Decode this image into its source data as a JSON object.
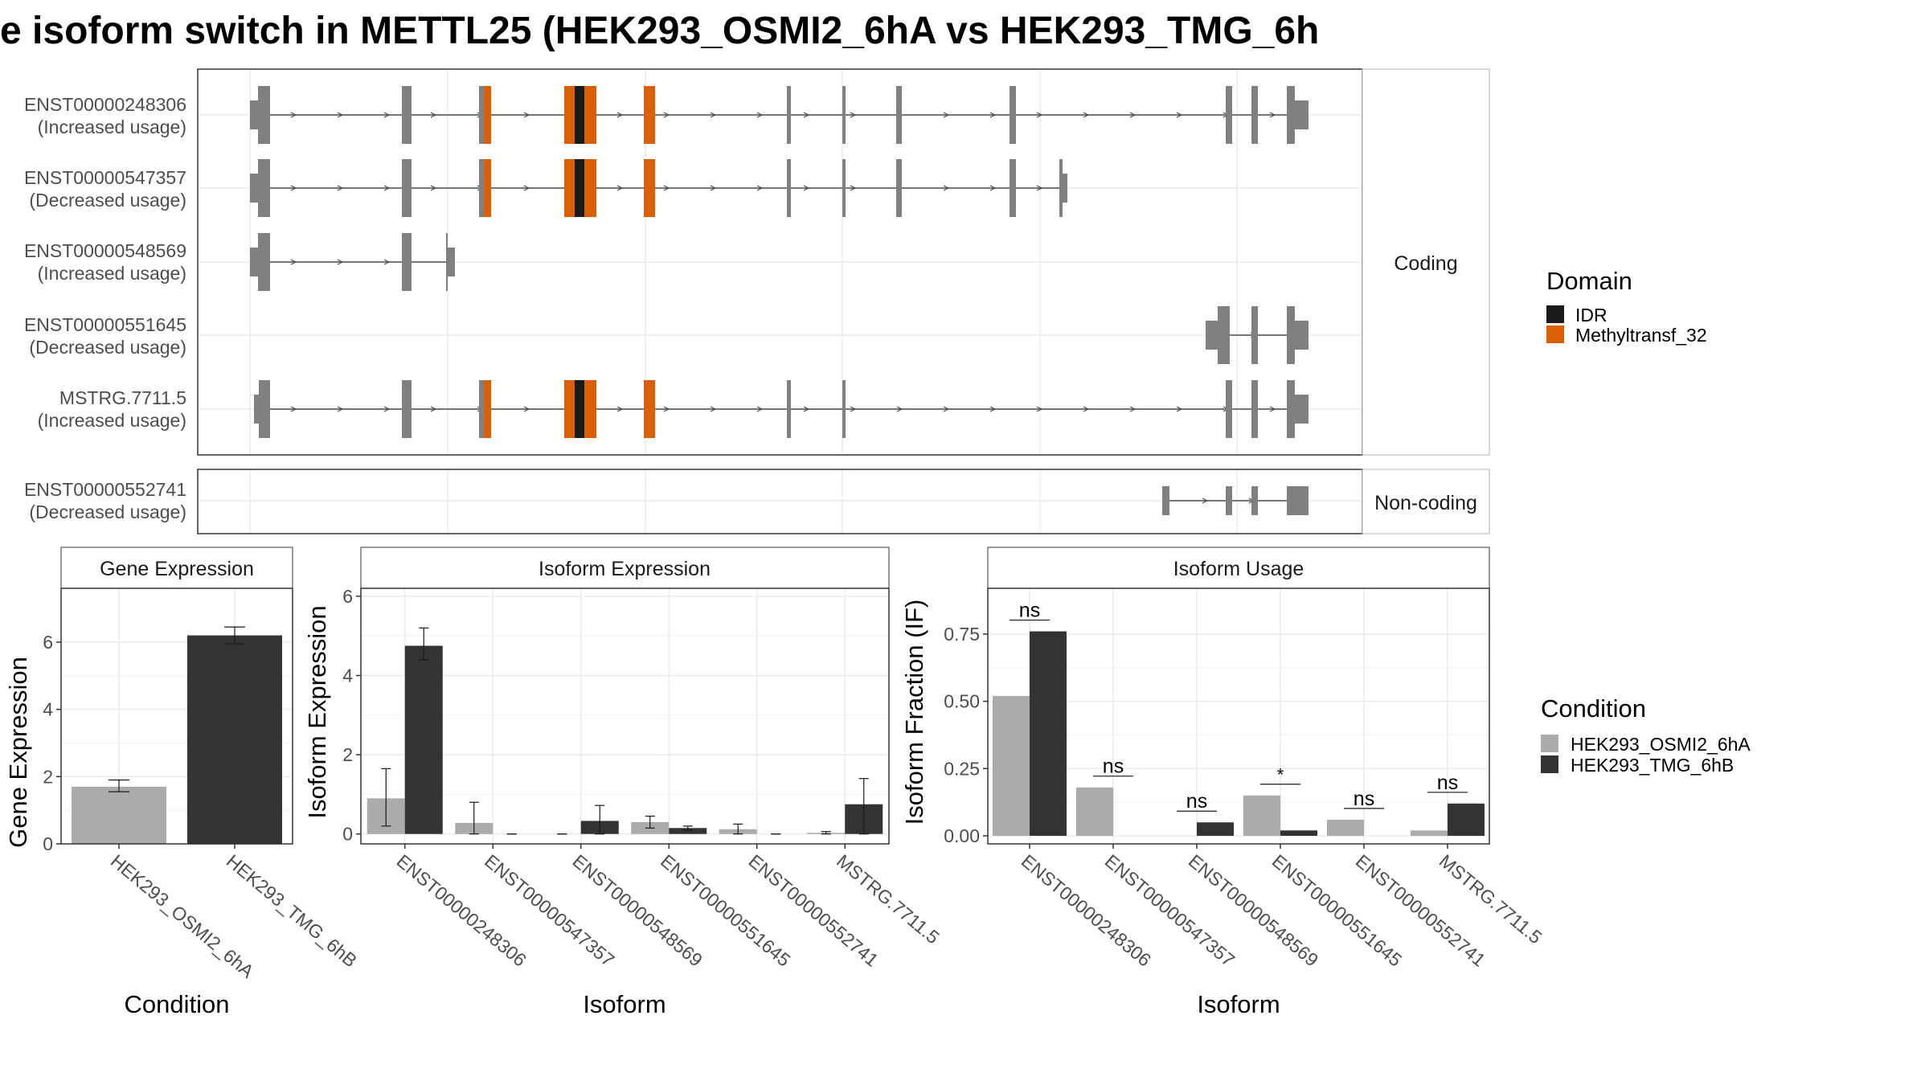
{
  "title": "e isoform switch in METTL25 (HEK293_OSMI2_6hA vs HEK293_TMG_6h",
  "structure_panel": {
    "strips": [
      "Coding",
      "Non-coding"
    ],
    "coding_transcripts": [
      {
        "id": "ENST00000248306",
        "usage": "(Increased usage)"
      },
      {
        "id": "ENST00000547357",
        "usage": "(Decreased usage)"
      },
      {
        "id": "ENST00000548569",
        "usage": "(Increased usage)"
      },
      {
        "id": "ENST00000551645",
        "usage": "(Decreased usage)"
      },
      {
        "id": "MSTRG.7711.5",
        "usage": "(Increased usage)"
      }
    ],
    "noncoding_transcripts": [
      {
        "id": "ENST00000552741",
        "usage": "(Decreased usage)"
      }
    ]
  },
  "legend_domain": {
    "title": "Domain",
    "items": [
      {
        "label": "IDR",
        "color": "#1a1a1a"
      },
      {
        "label": "Methyltransf_32",
        "color": "#d95f02"
      }
    ]
  },
  "legend_condition": {
    "title": "Condition",
    "items": [
      {
        "label": "HEK293_OSMI2_6hA",
        "color": "#ababab"
      },
      {
        "label": "HEK293_TMG_6hB",
        "color": "#333333"
      }
    ]
  },
  "chart_data": [
    {
      "type": "bar",
      "title": "Gene Expression",
      "xlabel": "Condition",
      "ylabel": "Gene Expression",
      "ylim": [
        0,
        7.6
      ],
      "yticks": [
        0,
        2,
        4,
        6
      ],
      "categories": [
        "HEK293_OSMI2_6hA",
        "HEK293_TMG_6hB"
      ],
      "values": [
        1.7,
        6.2
      ],
      "errors": [
        [
          1.55,
          1.9
        ],
        [
          5.95,
          6.45
        ]
      ],
      "colors": [
        "#ababab",
        "#333333"
      ]
    },
    {
      "type": "bar",
      "title": "Isoform Expression",
      "xlabel": "Isoform",
      "ylabel": "Isoform Expression",
      "ylim": [
        -0.25,
        6.2
      ],
      "yticks": [
        0,
        2,
        4,
        6
      ],
      "categories": [
        "ENST00000248306",
        "ENST00000547357",
        "ENST00000548569",
        "ENST00000551645",
        "ENST00000552741",
        "MSTRG.7711.5"
      ],
      "series": [
        {
          "name": "HEK293_OSMI2_6hA",
          "values": [
            0.9,
            0.28,
            0.0,
            0.3,
            0.12,
            0.03
          ],
          "errors": [
            [
              0.2,
              1.65
            ],
            [
              0.0,
              0.8
            ],
            [
              0.0,
              0.0
            ],
            [
              0.15,
              0.45
            ],
            [
              0.0,
              0.25
            ],
            [
              0.0,
              0.06
            ]
          ]
        },
        {
          "name": "HEK293_TMG_6hB",
          "values": [
            4.75,
            0.0,
            0.33,
            0.15,
            0.0,
            0.75
          ],
          "errors": [
            [
              4.4,
              5.2
            ],
            [
              0.0,
              0.0
            ],
            [
              0.0,
              0.72
            ],
            [
              0.1,
              0.2
            ],
            [
              0.0,
              0.0
            ],
            [
              0.0,
              1.4
            ]
          ]
        }
      ]
    },
    {
      "type": "bar",
      "title": "Isoform Usage",
      "xlabel": "Isoform",
      "ylabel": "Isoform Fraction (IF)",
      "ylim": [
        -0.03,
        0.92
      ],
      "yticks": [
        0.0,
        0.25,
        0.5,
        0.75
      ],
      "ytick_labels": [
        "0.00",
        "0.25",
        "0.50",
        "0.75"
      ],
      "categories": [
        "ENST00000248306",
        "ENST00000547357",
        "ENST00000548569",
        "ENST00000551645",
        "ENST00000552741",
        "MSTRG.7711.5"
      ],
      "series": [
        {
          "name": "HEK293_OSMI2_6hA",
          "values": [
            0.52,
            0.18,
            0.0,
            0.15,
            0.06,
            0.02
          ]
        },
        {
          "name": "HEK293_TMG_6hB",
          "values": [
            0.76,
            0.0,
            0.05,
            0.02,
            0.0,
            0.12
          ]
        }
      ],
      "significance": [
        "ns",
        "ns",
        "ns",
        "*",
        "ns",
        "ns"
      ]
    }
  ]
}
